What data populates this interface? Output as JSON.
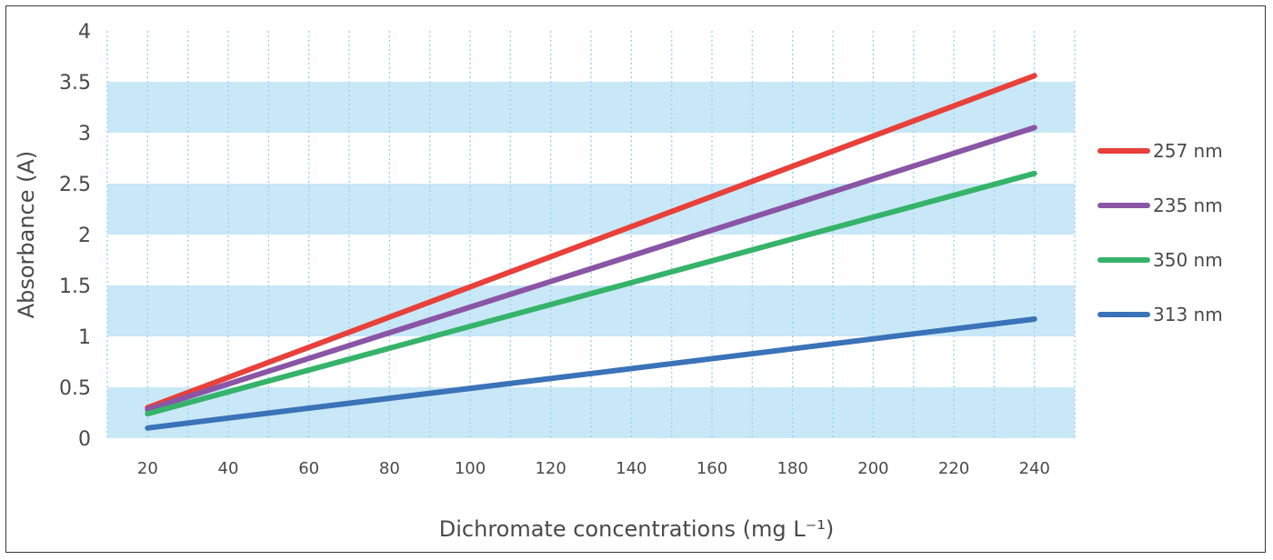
{
  "chart_data": {
    "type": "line",
    "title": "",
    "xlabel": "Dichromate concentrations (mg L⁻¹)",
    "ylabel": "Absorbance (A)",
    "x": [
      20,
      240
    ],
    "xticks": [
      "20",
      "40",
      "60",
      "80",
      "100",
      "120",
      "140",
      "160",
      "180",
      "200",
      "220",
      "240"
    ],
    "yticks": [
      "0",
      "0.5",
      "1",
      "1.5",
      "2",
      "2.5",
      "3",
      "3.5",
      "4"
    ],
    "xlim": [
      10,
      250
    ],
    "ylim": [
      0,
      4
    ],
    "band_color": "#c9e8f7",
    "legend_position": "right",
    "series": [
      {
        "name": "257 nm",
        "color": "#e8403a",
        "values": [
          0.3,
          3.56
        ]
      },
      {
        "name": "235 nm",
        "color": "#8a55a5",
        "values": [
          0.28,
          3.05
        ]
      },
      {
        "name": "350 nm",
        "color": "#36b36a",
        "values": [
          0.24,
          2.6
        ]
      },
      {
        "name": "313 nm",
        "color": "#3a73b8",
        "values": [
          0.1,
          1.17
        ]
      }
    ]
  }
}
